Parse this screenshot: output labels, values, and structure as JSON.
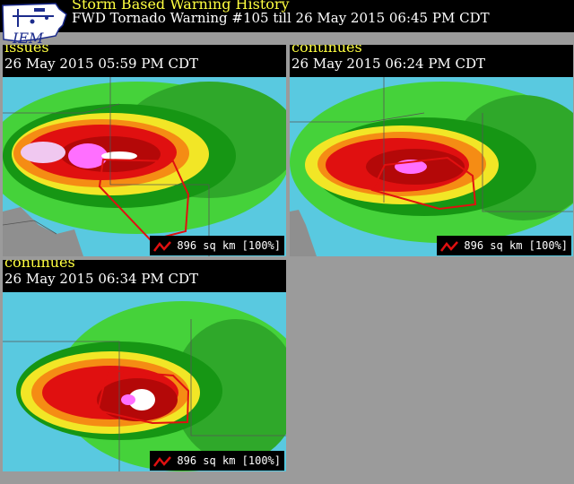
{
  "header": {
    "logo_text": "IEM",
    "title": "Storm Based Warning History",
    "subtitle": "FWD Tornado Warning #105 till  26 May 2015 06:45 PM CDT"
  },
  "panels": [
    {
      "status": "issues",
      "time": "26 May 2015 05:59 PM CDT",
      "area": "896 sq km [100%]"
    },
    {
      "status": "continues",
      "time": "26 May 2015 06:24 PM CDT",
      "area": "896 sq km [100%]"
    },
    {
      "status": "continues",
      "time": "26 May 2015 06:34 PM CDT",
      "area": "896 sq km [100%]"
    }
  ],
  "colors": {
    "background": "#9b9b9b",
    "title_yellow": "#ffff40",
    "warning_polygon": "#e01010",
    "radar_base": "#59c9e0"
  },
  "icons": [
    "iem-logo-icon",
    "polygon-legend-icon"
  ]
}
